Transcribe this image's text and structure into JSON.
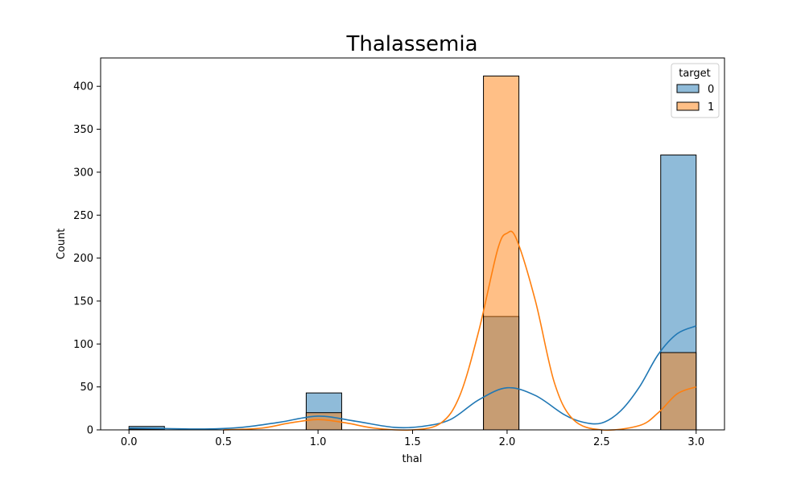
{
  "chart_data": {
    "type": "bar",
    "title": "Thalassemia",
    "xlabel": "thal",
    "ylabel": "Count",
    "xlim": [
      -0.15,
      3.15
    ],
    "ylim": [
      0,
      433
    ],
    "x_ticks": [
      0.0,
      0.5,
      1.0,
      1.5,
      2.0,
      2.5,
      3.0
    ],
    "x_tick_labels": [
      "0.0",
      "0.5",
      "1.0",
      "1.5",
      "2.0",
      "2.5",
      "3.0"
    ],
    "y_ticks": [
      0,
      50,
      100,
      150,
      200,
      250,
      300,
      350,
      400
    ],
    "y_tick_labels": [
      "0",
      "50",
      "100",
      "150",
      "200",
      "250",
      "300",
      "350",
      "400"
    ],
    "grid": false,
    "bin_width": 0.1875,
    "legend": {
      "title": "target",
      "placement": "top-right"
    },
    "series": [
      {
        "name": "0",
        "color": "#1f77b4",
        "bars": [
          {
            "x0": 0.0,
            "x1": 0.1875,
            "count": 4
          },
          {
            "x0": 0.9375,
            "x1": 1.125,
            "count": 43
          },
          {
            "x0": 1.875,
            "x1": 2.0625,
            "count": 132
          },
          {
            "x0": 2.8125,
            "x1": 3.0,
            "count": 320
          }
        ],
        "kde": [
          [
            0.0,
            2
          ],
          [
            0.2,
            1.5
          ],
          [
            0.4,
            1
          ],
          [
            0.6,
            3
          ],
          [
            0.8,
            9
          ],
          [
            1.0,
            16
          ],
          [
            1.2,
            10
          ],
          [
            1.4,
            3
          ],
          [
            1.55,
            4
          ],
          [
            1.7,
            12
          ],
          [
            1.85,
            35
          ],
          [
            2.0,
            49
          ],
          [
            2.15,
            40
          ],
          [
            2.3,
            18
          ],
          [
            2.4,
            9
          ],
          [
            2.5,
            8
          ],
          [
            2.6,
            22
          ],
          [
            2.7,
            50
          ],
          [
            2.8,
            88
          ],
          [
            2.9,
            112
          ],
          [
            3.0,
            121
          ]
        ]
      },
      {
        "name": "1",
        "color": "#ff7f0e",
        "bars": [
          {
            "x0": 0.0,
            "x1": 0.1875,
            "count": 1
          },
          {
            "x0": 0.9375,
            "x1": 1.125,
            "count": 20
          },
          {
            "x0": 1.875,
            "x1": 2.0625,
            "count": 412
          },
          {
            "x0": 2.8125,
            "x1": 3.0,
            "count": 90
          }
        ],
        "kde": [
          [
            0.5,
            0
          ],
          [
            0.7,
            2
          ],
          [
            0.85,
            8
          ],
          [
            1.0,
            12
          ],
          [
            1.15,
            8
          ],
          [
            1.3,
            2
          ],
          [
            1.5,
            0
          ],
          [
            1.65,
            8
          ],
          [
            1.75,
            40
          ],
          [
            1.85,
            115
          ],
          [
            1.95,
            210
          ],
          [
            2.0,
            229
          ],
          [
            2.05,
            222
          ],
          [
            2.15,
            150
          ],
          [
            2.25,
            55
          ],
          [
            2.35,
            12
          ],
          [
            2.5,
            0
          ],
          [
            2.7,
            5
          ],
          [
            2.8,
            20
          ],
          [
            2.9,
            42
          ],
          [
            3.0,
            50
          ]
        ]
      }
    ]
  }
}
